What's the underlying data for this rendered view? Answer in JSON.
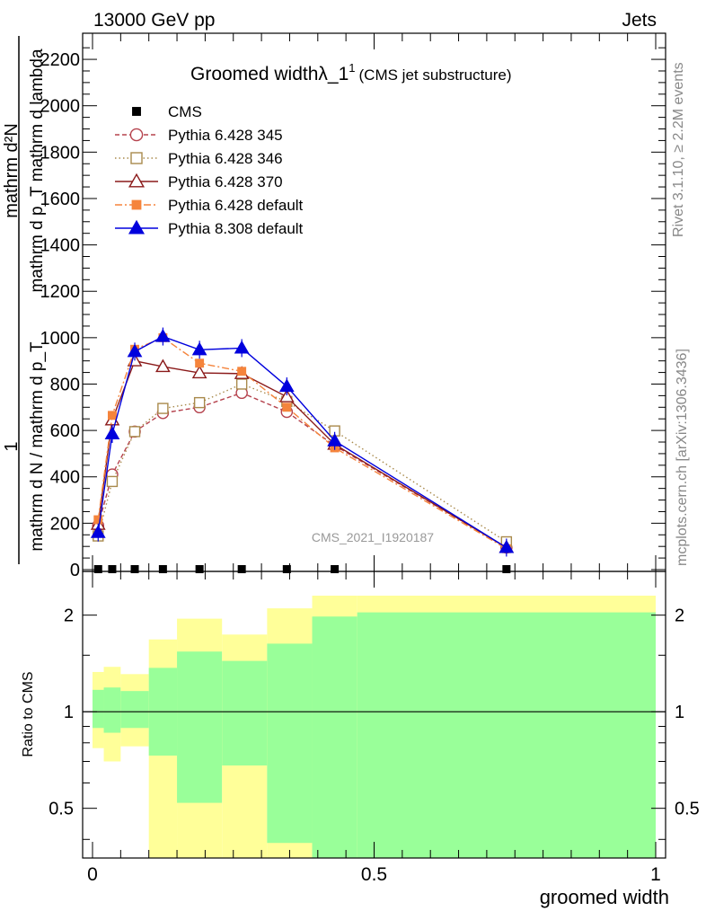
{
  "header": {
    "left": "13000 GeV pp",
    "right": "Jets"
  },
  "side_labels": {
    "rivet": "Rivet 3.1.10, ≥ 2.2M events",
    "mcplots": "mcplots.cern.ch [arXiv:1306.3436]"
  },
  "watermark": "CMS_2021_I1920187",
  "chart_data": [
    {
      "type": "line",
      "title": "Groomed widthλ_1",
      "title_sup": "1",
      "subtitle": "(CMS jet substructure)",
      "ylabel_num": "mathrm d²N",
      "ylabel_den": "mathrm d p_T mathrm d lambda",
      "ylabel_prefix_num": "1",
      "ylabel_prefix_den": "mathrm d N / mathrm d p_T",
      "xlim": [
        0,
        1
      ],
      "ylim": [
        0,
        2270
      ],
      "yticks": [
        0,
        200,
        400,
        600,
        800,
        1000,
        1200,
        1400,
        1600,
        1800,
        2000,
        2200
      ],
      "ytick_labels": [
        "0",
        "200",
        "400",
        "600",
        "800",
        "1000",
        "1200",
        "1400",
        "1600",
        "1800",
        "2000",
        "2200"
      ],
      "legend_position": "top-left",
      "series": [
        {
          "name": "CMS",
          "color": "#000000",
          "style": "points",
          "marker": "square-filled",
          "x": [
            0.01,
            0.035,
            0.075,
            0.125,
            0.19,
            0.265,
            0.345,
            0.43,
            0.735
          ],
          "y": [
            2,
            2,
            2,
            2,
            2,
            2,
            2,
            2,
            2
          ]
        },
        {
          "name": "Pythia 6.428 345",
          "color": "#b5424d",
          "style": "dashed",
          "marker": "circle-open",
          "x": [
            0.01,
            0.035,
            0.075,
            0.125,
            0.19,
            0.265,
            0.345,
            0.43,
            0.735
          ],
          "y": [
            190,
            410,
            595,
            675,
            700,
            762,
            680,
            535,
            95
          ]
        },
        {
          "name": "Pythia 6.428 346",
          "color": "#a98a4c",
          "style": "dotted",
          "marker": "square-open",
          "x": [
            0.01,
            0.035,
            0.075,
            0.125,
            0.19,
            0.265,
            0.345,
            0.43,
            0.735
          ],
          "y": [
            145,
            380,
            595,
            695,
            720,
            800,
            725,
            598,
            120
          ]
        },
        {
          "name": "Pythia 6.428 370",
          "color": "#8b1a1a",
          "style": "solid",
          "marker": "triangle-open",
          "x": [
            0.01,
            0.035,
            0.075,
            0.125,
            0.19,
            0.265,
            0.345,
            0.43,
            0.735
          ],
          "y": [
            195,
            645,
            900,
            875,
            848,
            845,
            745,
            540,
            95
          ]
        },
        {
          "name": "Pythia 6.428 default",
          "color": "#f5843c",
          "style": "dashdot",
          "marker": "square-filled",
          "x": [
            0.01,
            0.035,
            0.075,
            0.125,
            0.19,
            0.265,
            0.345,
            0.43,
            0.735
          ],
          "y": [
            215,
            665,
            950,
            1000,
            890,
            855,
            700,
            525,
            90
          ]
        },
        {
          "name": "Pythia 8.308 default",
          "color": "#0000dd",
          "style": "solid",
          "marker": "triangle-filled",
          "x": [
            0.01,
            0.035,
            0.075,
            0.125,
            0.19,
            0.265,
            0.345,
            0.43,
            0.735
          ],
          "y": [
            160,
            585,
            940,
            1005,
            948,
            955,
            790,
            555,
            95
          ]
        }
      ]
    },
    {
      "type": "area",
      "ylabel": "Ratio to CMS",
      "xlabel": "groomed width",
      "xlim": [
        0,
        1
      ],
      "ylim": [
        0.35,
        2.3
      ],
      "yscale": "log",
      "yticks": [
        0.5,
        1,
        2
      ],
      "ytick_labels": [
        "0.5",
        "1",
        "2"
      ],
      "xticks": [
        0,
        0.5,
        1
      ],
      "xtick_labels": [
        "0",
        "0.5",
        "1"
      ],
      "reference_line": 1,
      "band_colors": {
        "outer": "#ffff99",
        "inner": "#99ff99"
      },
      "bins": [
        {
          "lo": 0.0,
          "hi": 0.02,
          "yellow": [
            0.77,
            1.33
          ],
          "green": [
            0.89,
            1.17
          ]
        },
        {
          "lo": 0.02,
          "hi": 0.05,
          "yellow": [
            0.7,
            1.38
          ],
          "green": [
            0.86,
            1.19
          ]
        },
        {
          "lo": 0.05,
          "hi": 0.1,
          "yellow": [
            0.78,
            1.31
          ],
          "green": [
            0.89,
            1.16
          ]
        },
        {
          "lo": 0.1,
          "hi": 0.15,
          "yellow": [
            0.35,
            1.68
          ],
          "green": [
            0.73,
            1.37
          ]
        },
        {
          "lo": 0.15,
          "hi": 0.23,
          "yellow": [
            0.35,
            1.95
          ],
          "green": [
            0.52,
            1.54
          ]
        },
        {
          "lo": 0.23,
          "hi": 0.31,
          "yellow": [
            0.35,
            1.74
          ],
          "green": [
            0.68,
            1.44
          ]
        },
        {
          "lo": 0.31,
          "hi": 0.39,
          "yellow": [
            0.35,
            2.1
          ],
          "green": [
            0.39,
            1.63
          ]
        },
        {
          "lo": 0.39,
          "hi": 0.47,
          "yellow": [
            0.35,
            2.3
          ],
          "green": [
            0.35,
            1.98
          ]
        },
        {
          "lo": 0.47,
          "hi": 1.0,
          "yellow": [
            0.35,
            2.3
          ],
          "green": [
            0.35,
            2.04
          ]
        }
      ]
    }
  ]
}
